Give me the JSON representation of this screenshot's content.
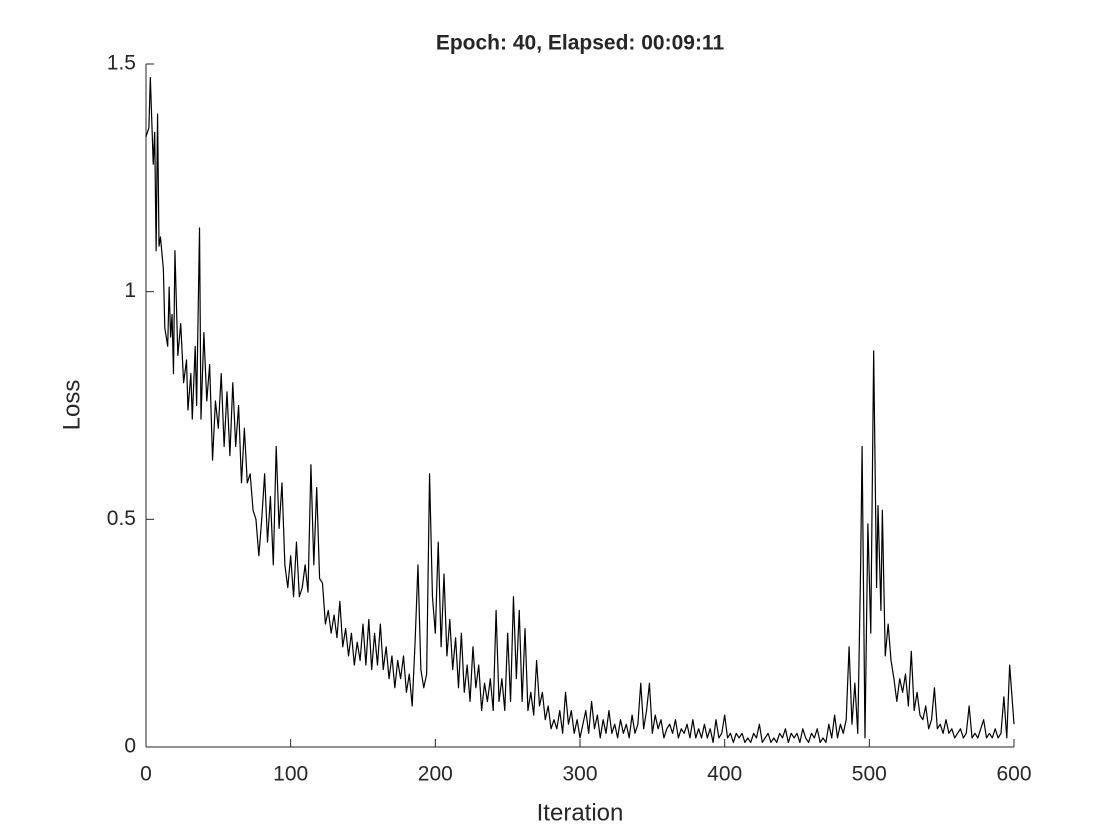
{
  "chart_data": {
    "type": "line",
    "title": "Epoch: 40, Elapsed: 00:09:11",
    "x_label": "Iteration",
    "y_label": "Loss",
    "xlim": [
      0,
      600
    ],
    "xticks": [
      0,
      100,
      200,
      300,
      400,
      500,
      600
    ],
    "ylim": [
      0,
      1.5
    ],
    "yticks": [
      0,
      0.5,
      1,
      1.5
    ],
    "x": [
      0,
      2,
      3,
      5,
      6,
      7,
      8,
      9,
      10,
      12,
      13,
      15,
      16,
      17,
      18,
      19,
      20,
      22,
      24,
      26,
      28,
      29,
      31,
      32,
      34,
      35,
      37,
      38,
      40,
      42,
      44,
      46,
      48,
      50,
      52,
      54,
      56,
      58,
      60,
      62,
      64,
      66,
      68,
      70,
      72,
      74,
      76,
      78,
      80,
      82,
      84,
      86,
      88,
      90,
      92,
      94,
      96,
      98,
      100,
      102,
      104,
      106,
      108,
      110,
      112,
      114,
      116,
      118,
      120,
      122,
      124,
      126,
      128,
      130,
      132,
      134,
      136,
      138,
      140,
      142,
      144,
      146,
      148,
      150,
      152,
      154,
      156,
      158,
      160,
      162,
      164,
      166,
      168,
      170,
      172,
      174,
      176,
      178,
      180,
      182,
      184,
      186,
      188,
      190,
      192,
      194,
      196,
      198,
      200,
      202,
      204,
      206,
      208,
      210,
      212,
      214,
      216,
      218,
      220,
      222,
      224,
      226,
      228,
      230,
      232,
      234,
      236,
      238,
      240,
      242,
      244,
      246,
      248,
      250,
      252,
      254,
      256,
      258,
      260,
      262,
      264,
      266,
      268,
      270,
      272,
      274,
      276,
      278,
      280,
      282,
      284,
      286,
      288,
      290,
      292,
      294,
      296,
      298,
      300,
      302,
      304,
      306,
      308,
      310,
      312,
      314,
      316,
      318,
      320,
      322,
      324,
      326,
      328,
      330,
      332,
      334,
      336,
      338,
      340,
      342,
      344,
      346,
      348,
      350,
      352,
      354,
      356,
      358,
      360,
      362,
      364,
      366,
      368,
      370,
      372,
      374,
      376,
      378,
      380,
      382,
      384,
      386,
      388,
      390,
      392,
      394,
      396,
      398,
      400,
      402,
      404,
      406,
      408,
      410,
      412,
      414,
      416,
      418,
      420,
      422,
      424,
      426,
      428,
      430,
      432,
      434,
      436,
      438,
      440,
      442,
      444,
      446,
      448,
      450,
      452,
      454,
      456,
      458,
      460,
      462,
      464,
      466,
      468,
      470,
      472,
      474,
      476,
      478,
      480,
      482,
      484,
      486,
      488,
      490,
      492,
      494,
      495,
      497,
      499,
      501,
      503,
      505,
      506,
      508,
      509,
      511,
      513,
      515,
      517,
      519,
      521,
      523,
      525,
      527,
      529,
      531,
      533,
      535,
      537,
      539,
      541,
      543,
      545,
      547,
      549,
      551,
      553,
      555,
      557,
      559,
      561,
      563,
      565,
      567,
      569,
      571,
      573,
      575,
      577,
      579,
      581,
      583,
      585,
      587,
      589,
      591,
      593,
      595,
      597,
      600
    ],
    "series": [
      {
        "color": "#000000",
        "values": [
          1.34,
          1.36,
          1.47,
          1.28,
          1.35,
          1.09,
          1.39,
          1.1,
          1.12,
          1.05,
          0.92,
          0.88,
          1.01,
          0.9,
          0.95,
          0.82,
          1.09,
          0.86,
          0.93,
          0.8,
          0.85,
          0.74,
          0.82,
          0.72,
          0.88,
          0.75,
          1.14,
          0.72,
          0.91,
          0.76,
          0.84,
          0.63,
          0.76,
          0.7,
          0.82,
          0.66,
          0.78,
          0.64,
          0.8,
          0.66,
          0.75,
          0.58,
          0.7,
          0.58,
          0.6,
          0.52,
          0.5,
          0.42,
          0.5,
          0.6,
          0.45,
          0.55,
          0.4,
          0.66,
          0.48,
          0.58,
          0.4,
          0.35,
          0.42,
          0.33,
          0.45,
          0.33,
          0.35,
          0.4,
          0.34,
          0.62,
          0.4,
          0.57,
          0.37,
          0.36,
          0.27,
          0.3,
          0.25,
          0.29,
          0.24,
          0.32,
          0.22,
          0.26,
          0.2,
          0.25,
          0.18,
          0.23,
          0.19,
          0.27,
          0.18,
          0.28,
          0.17,
          0.25,
          0.18,
          0.27,
          0.17,
          0.22,
          0.15,
          0.2,
          0.13,
          0.19,
          0.15,
          0.2,
          0.12,
          0.16,
          0.09,
          0.23,
          0.4,
          0.17,
          0.13,
          0.16,
          0.6,
          0.33,
          0.25,
          0.45,
          0.22,
          0.38,
          0.2,
          0.28,
          0.17,
          0.24,
          0.13,
          0.25,
          0.12,
          0.18,
          0.1,
          0.22,
          0.13,
          0.18,
          0.08,
          0.14,
          0.1,
          0.15,
          0.08,
          0.3,
          0.1,
          0.15,
          0.08,
          0.25,
          0.1,
          0.33,
          0.15,
          0.3,
          0.1,
          0.26,
          0.08,
          0.12,
          0.07,
          0.19,
          0.09,
          0.12,
          0.06,
          0.09,
          0.04,
          0.06,
          0.04,
          0.08,
          0.03,
          0.12,
          0.05,
          0.08,
          0.03,
          0.06,
          0.02,
          0.05,
          0.08,
          0.03,
          0.1,
          0.04,
          0.07,
          0.02,
          0.06,
          0.03,
          0.08,
          0.03,
          0.05,
          0.02,
          0.06,
          0.03,
          0.05,
          0.02,
          0.07,
          0.03,
          0.05,
          0.14,
          0.04,
          0.08,
          0.14,
          0.03,
          0.07,
          0.04,
          0.06,
          0.02,
          0.04,
          0.05,
          0.03,
          0.06,
          0.02,
          0.04,
          0.03,
          0.05,
          0.02,
          0.06,
          0.02,
          0.04,
          0.02,
          0.05,
          0.02,
          0.04,
          0.01,
          0.06,
          0.02,
          0.03,
          0.07,
          0.02,
          0.03,
          0.01,
          0.03,
          0.02,
          0.03,
          0.01,
          0.02,
          0.01,
          0.03,
          0.02,
          0.05,
          0.01,
          0.02,
          0.03,
          0.01,
          0.02,
          0.01,
          0.03,
          0.02,
          0.04,
          0.01,
          0.03,
          0.02,
          0.03,
          0.01,
          0.04,
          0.02,
          0.01,
          0.03,
          0.02,
          0.04,
          0.01,
          0.02,
          0.01,
          0.05,
          0.02,
          0.07,
          0.02,
          0.05,
          0.03,
          0.06,
          0.22,
          0.05,
          0.14,
          0.03,
          0.4,
          0.66,
          0.02,
          0.49,
          0.25,
          0.87,
          0.35,
          0.53,
          0.3,
          0.52,
          0.2,
          0.27,
          0.19,
          0.15,
          0.1,
          0.15,
          0.12,
          0.16,
          0.09,
          0.21,
          0.08,
          0.12,
          0.07,
          0.06,
          0.09,
          0.04,
          0.06,
          0.13,
          0.04,
          0.05,
          0.03,
          0.06,
          0.03,
          0.04,
          0.02,
          0.03,
          0.04,
          0.02,
          0.03,
          0.09,
          0.02,
          0.03,
          0.02,
          0.04,
          0.06,
          0.02,
          0.03,
          0.02,
          0.04,
          0.02,
          0.03,
          0.11,
          0.02,
          0.18,
          0.05
        ]
      }
    ]
  }
}
